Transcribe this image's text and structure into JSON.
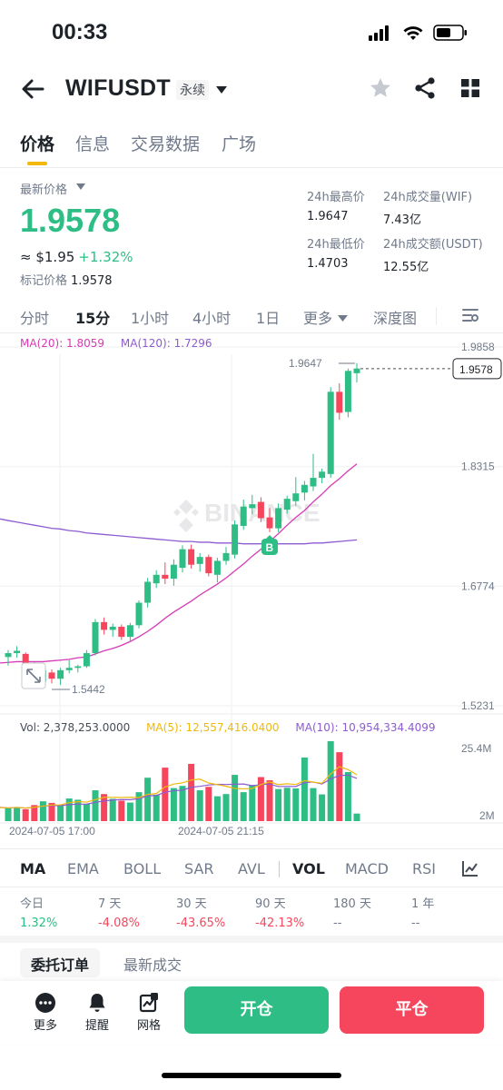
{
  "status_bar": {
    "time": "00:33"
  },
  "header": {
    "symbol": "WIFUSDT",
    "contract_type": "永续"
  },
  "tabs": [
    {
      "label": "价格",
      "active": true
    },
    {
      "label": "信息",
      "active": false
    },
    {
      "label": "交易数据",
      "active": false
    },
    {
      "label": "广场",
      "active": false
    }
  ],
  "price": {
    "latest_label": "最新价格",
    "last_price": "1.9578",
    "usd_approx": "≈ $1.95",
    "change_pct": "+1.32%",
    "mark_label": "标记价格",
    "mark_price": "1.9578"
  },
  "stats": {
    "high_label": "24h最高价",
    "high": "1.9647",
    "vol_wif_label": "24h成交量(WIF)",
    "vol_wif": "7.43亿",
    "low_label": "24h最低价",
    "low": "1.4703",
    "vol_usdt_label": "24h成交额(USDT)",
    "vol_usdt": "12.55亿"
  },
  "timeframes": {
    "items": [
      "分时",
      "15分",
      "1小时",
      "4小时",
      "1日",
      "更多",
      "深度图"
    ],
    "active": "15分"
  },
  "ma_legend": {
    "ma20": "MA(20): 1.8059",
    "ma120": "MA(120): 1.7296"
  },
  "vol_legend": {
    "vol": "Vol: 2,378,253.0000",
    "ma5": "MA(5): 12,557,416.0400",
    "ma10": "MA(10): 10,954,334.4099"
  },
  "watermark": "BINANCE",
  "buy_marker": "B",
  "annotations": {
    "high_label": "1.9647",
    "low_label": "1.5442",
    "current_price_tag": "1.9578"
  },
  "chart_data": {
    "type": "candlestick",
    "price_axis_ticks": [
      "1.9858",
      "1.8315",
      "1.6774",
      "1.5231"
    ],
    "price_axis_values": [
      1.9858,
      1.8315,
      1.6774,
      1.5231
    ],
    "volume_axis_ticks": [
      "25.4M",
      "2M"
    ],
    "time_labels": [
      "2024-07-05 17:00",
      "2024-07-05 21:15"
    ],
    "current_price": 1.9578,
    "high": 1.9647,
    "low": 1.5442,
    "candles": [
      {
        "o": 1.586,
        "h": 1.595,
        "l": 1.575,
        "c": 1.591
      },
      {
        "o": 1.591,
        "h": 1.6,
        "l": 1.585,
        "c": 1.594
      },
      {
        "o": 1.59,
        "h": 1.592,
        "l": 1.574,
        "c": 1.578
      },
      {
        "o": 1.578,
        "h": 1.58,
        "l": 1.548,
        "c": 1.554
      },
      {
        "o": 1.554,
        "h": 1.573,
        "l": 1.549,
        "c": 1.569
      },
      {
        "o": 1.566,
        "h": 1.57,
        "l": 1.552,
        "c": 1.558
      },
      {
        "o": 1.558,
        "h": 1.572,
        "l": 1.55,
        "c": 1.569
      },
      {
        "o": 1.569,
        "h": 1.582,
        "l": 1.565,
        "c": 1.572
      },
      {
        "o": 1.572,
        "h": 1.576,
        "l": 1.566,
        "c": 1.574
      },
      {
        "o": 1.574,
        "h": 1.595,
        "l": 1.572,
        "c": 1.591
      },
      {
        "o": 1.591,
        "h": 1.635,
        "l": 1.588,
        "c": 1.631
      },
      {
        "o": 1.631,
        "h": 1.637,
        "l": 1.615,
        "c": 1.621
      },
      {
        "o": 1.621,
        "h": 1.629,
        "l": 1.612,
        "c": 1.625
      },
      {
        "o": 1.625,
        "h": 1.628,
        "l": 1.608,
        "c": 1.612
      },
      {
        "o": 1.612,
        "h": 1.63,
        "l": 1.605,
        "c": 1.627
      },
      {
        "o": 1.627,
        "h": 1.659,
        "l": 1.623,
        "c": 1.656
      },
      {
        "o": 1.656,
        "h": 1.688,
        "l": 1.65,
        "c": 1.683
      },
      {
        "o": 1.681,
        "h": 1.698,
        "l": 1.675,
        "c": 1.692
      },
      {
        "o": 1.692,
        "h": 1.708,
        "l": 1.68,
        "c": 1.687
      },
      {
        "o": 1.687,
        "h": 1.712,
        "l": 1.678,
        "c": 1.705
      },
      {
        "o": 1.701,
        "h": 1.73,
        "l": 1.695,
        "c": 1.725
      },
      {
        "o": 1.725,
        "h": 1.731,
        "l": 1.7,
        "c": 1.705
      },
      {
        "o": 1.706,
        "h": 1.72,
        "l": 1.696,
        "c": 1.715
      },
      {
        "o": 1.715,
        "h": 1.718,
        "l": 1.69,
        "c": 1.694
      },
      {
        "o": 1.692,
        "h": 1.714,
        "l": 1.682,
        "c": 1.71
      },
      {
        "o": 1.71,
        "h": 1.728,
        "l": 1.705,
        "c": 1.72
      },
      {
        "o": 1.718,
        "h": 1.762,
        "l": 1.713,
        "c": 1.757
      },
      {
        "o": 1.755,
        "h": 1.789,
        "l": 1.75,
        "c": 1.78
      },
      {
        "o": 1.778,
        "h": 1.795,
        "l": 1.77,
        "c": 1.783
      },
      {
        "o": 1.786,
        "h": 1.792,
        "l": 1.76,
        "c": 1.765
      },
      {
        "o": 1.766,
        "h": 1.778,
        "l": 1.747,
        "c": 1.752
      },
      {
        "o": 1.752,
        "h": 1.784,
        "l": 1.747,
        "c": 1.778
      },
      {
        "o": 1.776,
        "h": 1.794,
        "l": 1.771,
        "c": 1.79
      },
      {
        "o": 1.787,
        "h": 1.818,
        "l": 1.781,
        "c": 1.797
      },
      {
        "o": 1.798,
        "h": 1.813,
        "l": 1.788,
        "c": 1.808
      },
      {
        "o": 1.806,
        "h": 1.848,
        "l": 1.8,
        "c": 1.817
      },
      {
        "o": 1.817,
        "h": 1.829,
        "l": 1.81,
        "c": 1.825
      },
      {
        "o": 1.822,
        "h": 1.934,
        "l": 1.817,
        "c": 1.928
      },
      {
        "o": 1.928,
        "h": 1.939,
        "l": 1.892,
        "c": 1.901
      },
      {
        "o": 1.902,
        "h": 1.958,
        "l": 1.895,
        "c": 1.955
      },
      {
        "o": 1.952,
        "h": 1.965,
        "l": 1.94,
        "c": 1.958
      }
    ],
    "volumes_m": [
      4.2,
      4.5,
      3.8,
      5.1,
      6.3,
      5.8,
      4.9,
      7.2,
      6.8,
      5.5,
      9.8,
      8.6,
      7.1,
      6.5,
      5.9,
      9.2,
      13.8,
      8.4,
      17.0,
      10.5,
      11.2,
      18.2,
      9.8,
      10.9,
      7.9,
      8.6,
      14.7,
      9.2,
      11.5,
      14.0,
      13.0,
      10.2,
      10.6,
      10.4,
      20.2,
      10.5,
      8.5,
      25.4,
      21.9,
      15.6,
      2.4
    ],
    "ma20_x_start_index": 0,
    "ma120_values": [
      1.762,
      1.76,
      1.758,
      1.756,
      1.754,
      1.752,
      1.751,
      1.749,
      1.748,
      1.746,
      1.745,
      1.744,
      1.743,
      1.742,
      1.741,
      1.74,
      1.739,
      1.738,
      1.737,
      1.736,
      1.735,
      1.735,
      1.734,
      1.734,
      1.733,
      1.733,
      1.733,
      1.732,
      1.732,
      1.732,
      1.732,
      1.732,
      1.732,
      1.732,
      1.732,
      1.733,
      1.733,
      1.734,
      1.735,
      1.736,
      1.737
    ],
    "ma20_values": [
      1.579,
      1.58,
      1.58,
      1.58,
      1.58,
      1.581,
      1.582,
      1.583,
      1.585,
      1.586,
      1.59,
      1.594,
      1.597,
      1.601,
      1.606,
      1.612,
      1.619,
      1.627,
      1.636,
      1.644,
      1.651,
      1.658,
      1.666,
      1.673,
      1.68,
      1.688,
      1.697,
      1.706,
      1.716,
      1.725,
      1.735,
      1.745,
      1.756,
      1.766,
      1.775,
      1.786,
      1.796,
      1.807,
      1.816,
      1.826,
      1.835
    ]
  },
  "indicators": {
    "items": [
      "MA",
      "EMA",
      "BOLL",
      "SAR",
      "AVL",
      "VOL",
      "MACD",
      "RSI"
    ],
    "active": [
      "MA",
      "VOL"
    ]
  },
  "performance": [
    {
      "label": "今日",
      "value": "1.32%",
      "dir": "gain"
    },
    {
      "label": "7 天",
      "value": "-4.08%",
      "dir": "loss"
    },
    {
      "label": "30 天",
      "value": "-43.65%",
      "dir": "loss"
    },
    {
      "label": "90 天",
      "value": "-42.13%",
      "dir": "loss"
    },
    {
      "label": "180 天",
      "value": "--",
      "dir": "na"
    },
    {
      "label": "1 年",
      "value": "--",
      "dir": "na"
    }
  ],
  "order_tabs": [
    {
      "label": "委托订单",
      "active": true
    },
    {
      "label": "最新成交",
      "active": false
    }
  ],
  "bottom_bar": {
    "more": "更多",
    "alert": "提醒",
    "grid": "网格",
    "open": "开仓",
    "close": "平仓"
  },
  "colors": {
    "up": "#2ebd85",
    "down": "#f6465d",
    "accent": "#f0b90b",
    "ma20": "#d63ab4",
    "ma120": "#8e5bd0",
    "ma5_vol": "#f0b90b",
    "ma10_vol": "#8e5bd0"
  }
}
